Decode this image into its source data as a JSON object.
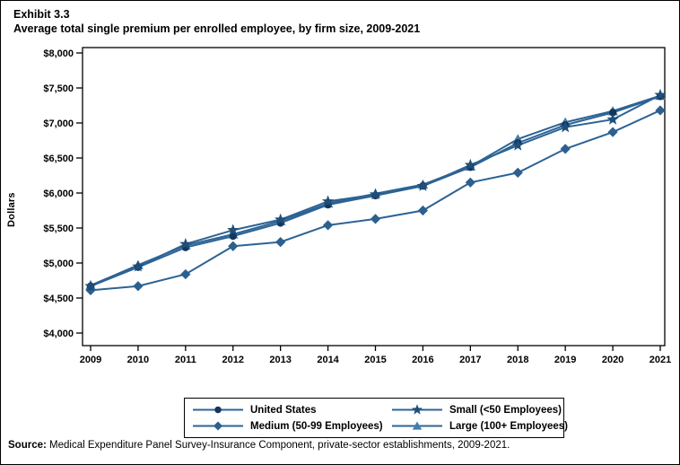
{
  "title": {
    "exhibit": "Exhibit 3.3"
  },
  "source": {
    "label": "Source:",
    "text": " Medical Expenditure Panel Survey-Insurance Component, private-sector establishments, 2009-2021."
  },
  "colors": {
    "line": "#2D6394",
    "axis": "#000000",
    "background": "#FFFFFF"
  },
  "chart_data": {
    "type": "line",
    "title": "Average total single premium per enrolled employee, by firm size, 2009-2021",
    "xlabel": "",
    "ylabel": "Dollars",
    "x": [
      2009,
      2010,
      2011,
      2012,
      2013,
      2014,
      2015,
      2016,
      2017,
      2018,
      2019,
      2020,
      2021
    ],
    "ylim": [
      4000,
      8000
    ],
    "ytick_step": 500,
    "ytick_prefix": "$",
    "grid": false,
    "legend_position": "bottom",
    "legend_order": [
      0,
      2,
      1,
      3
    ],
    "series": [
      {
        "name": "United States",
        "marker": "circle",
        "marker_color": "#15365A",
        "line_color": "#2D6394",
        "values": [
          4669,
          4940,
          5222,
          5384,
          5571,
          5832,
          5963,
          6101,
          6368,
          6715,
          6972,
          7149,
          7380
        ]
      },
      {
        "name": "Medium (50-99 Employees)",
        "marker": "diamond",
        "marker_color": "#2B608F",
        "line_color": "#2D6394",
        "values": [
          4610,
          4670,
          4840,
          5240,
          5300,
          5540,
          5630,
          5750,
          6150,
          6290,
          6630,
          6870,
          7180
        ]
      },
      {
        "name": "Small (<50 Employees)",
        "marker": "star",
        "marker_color": "#1F4E79",
        "line_color": "#2D6394",
        "values": [
          4670,
          4950,
          5270,
          5470,
          5620,
          5880,
          5980,
          6100,
          6400,
          6680,
          6940,
          7050,
          7400
        ]
      },
      {
        "name": "Large (100+ Employees)",
        "marker": "triangle",
        "marker_color": "#3F7FB0",
        "line_color": "#2D6394",
        "values": [
          4680,
          4970,
          5250,
          5410,
          5600,
          5850,
          5990,
          6120,
          6380,
          6770,
          7010,
          7170,
          7390
        ]
      }
    ]
  }
}
